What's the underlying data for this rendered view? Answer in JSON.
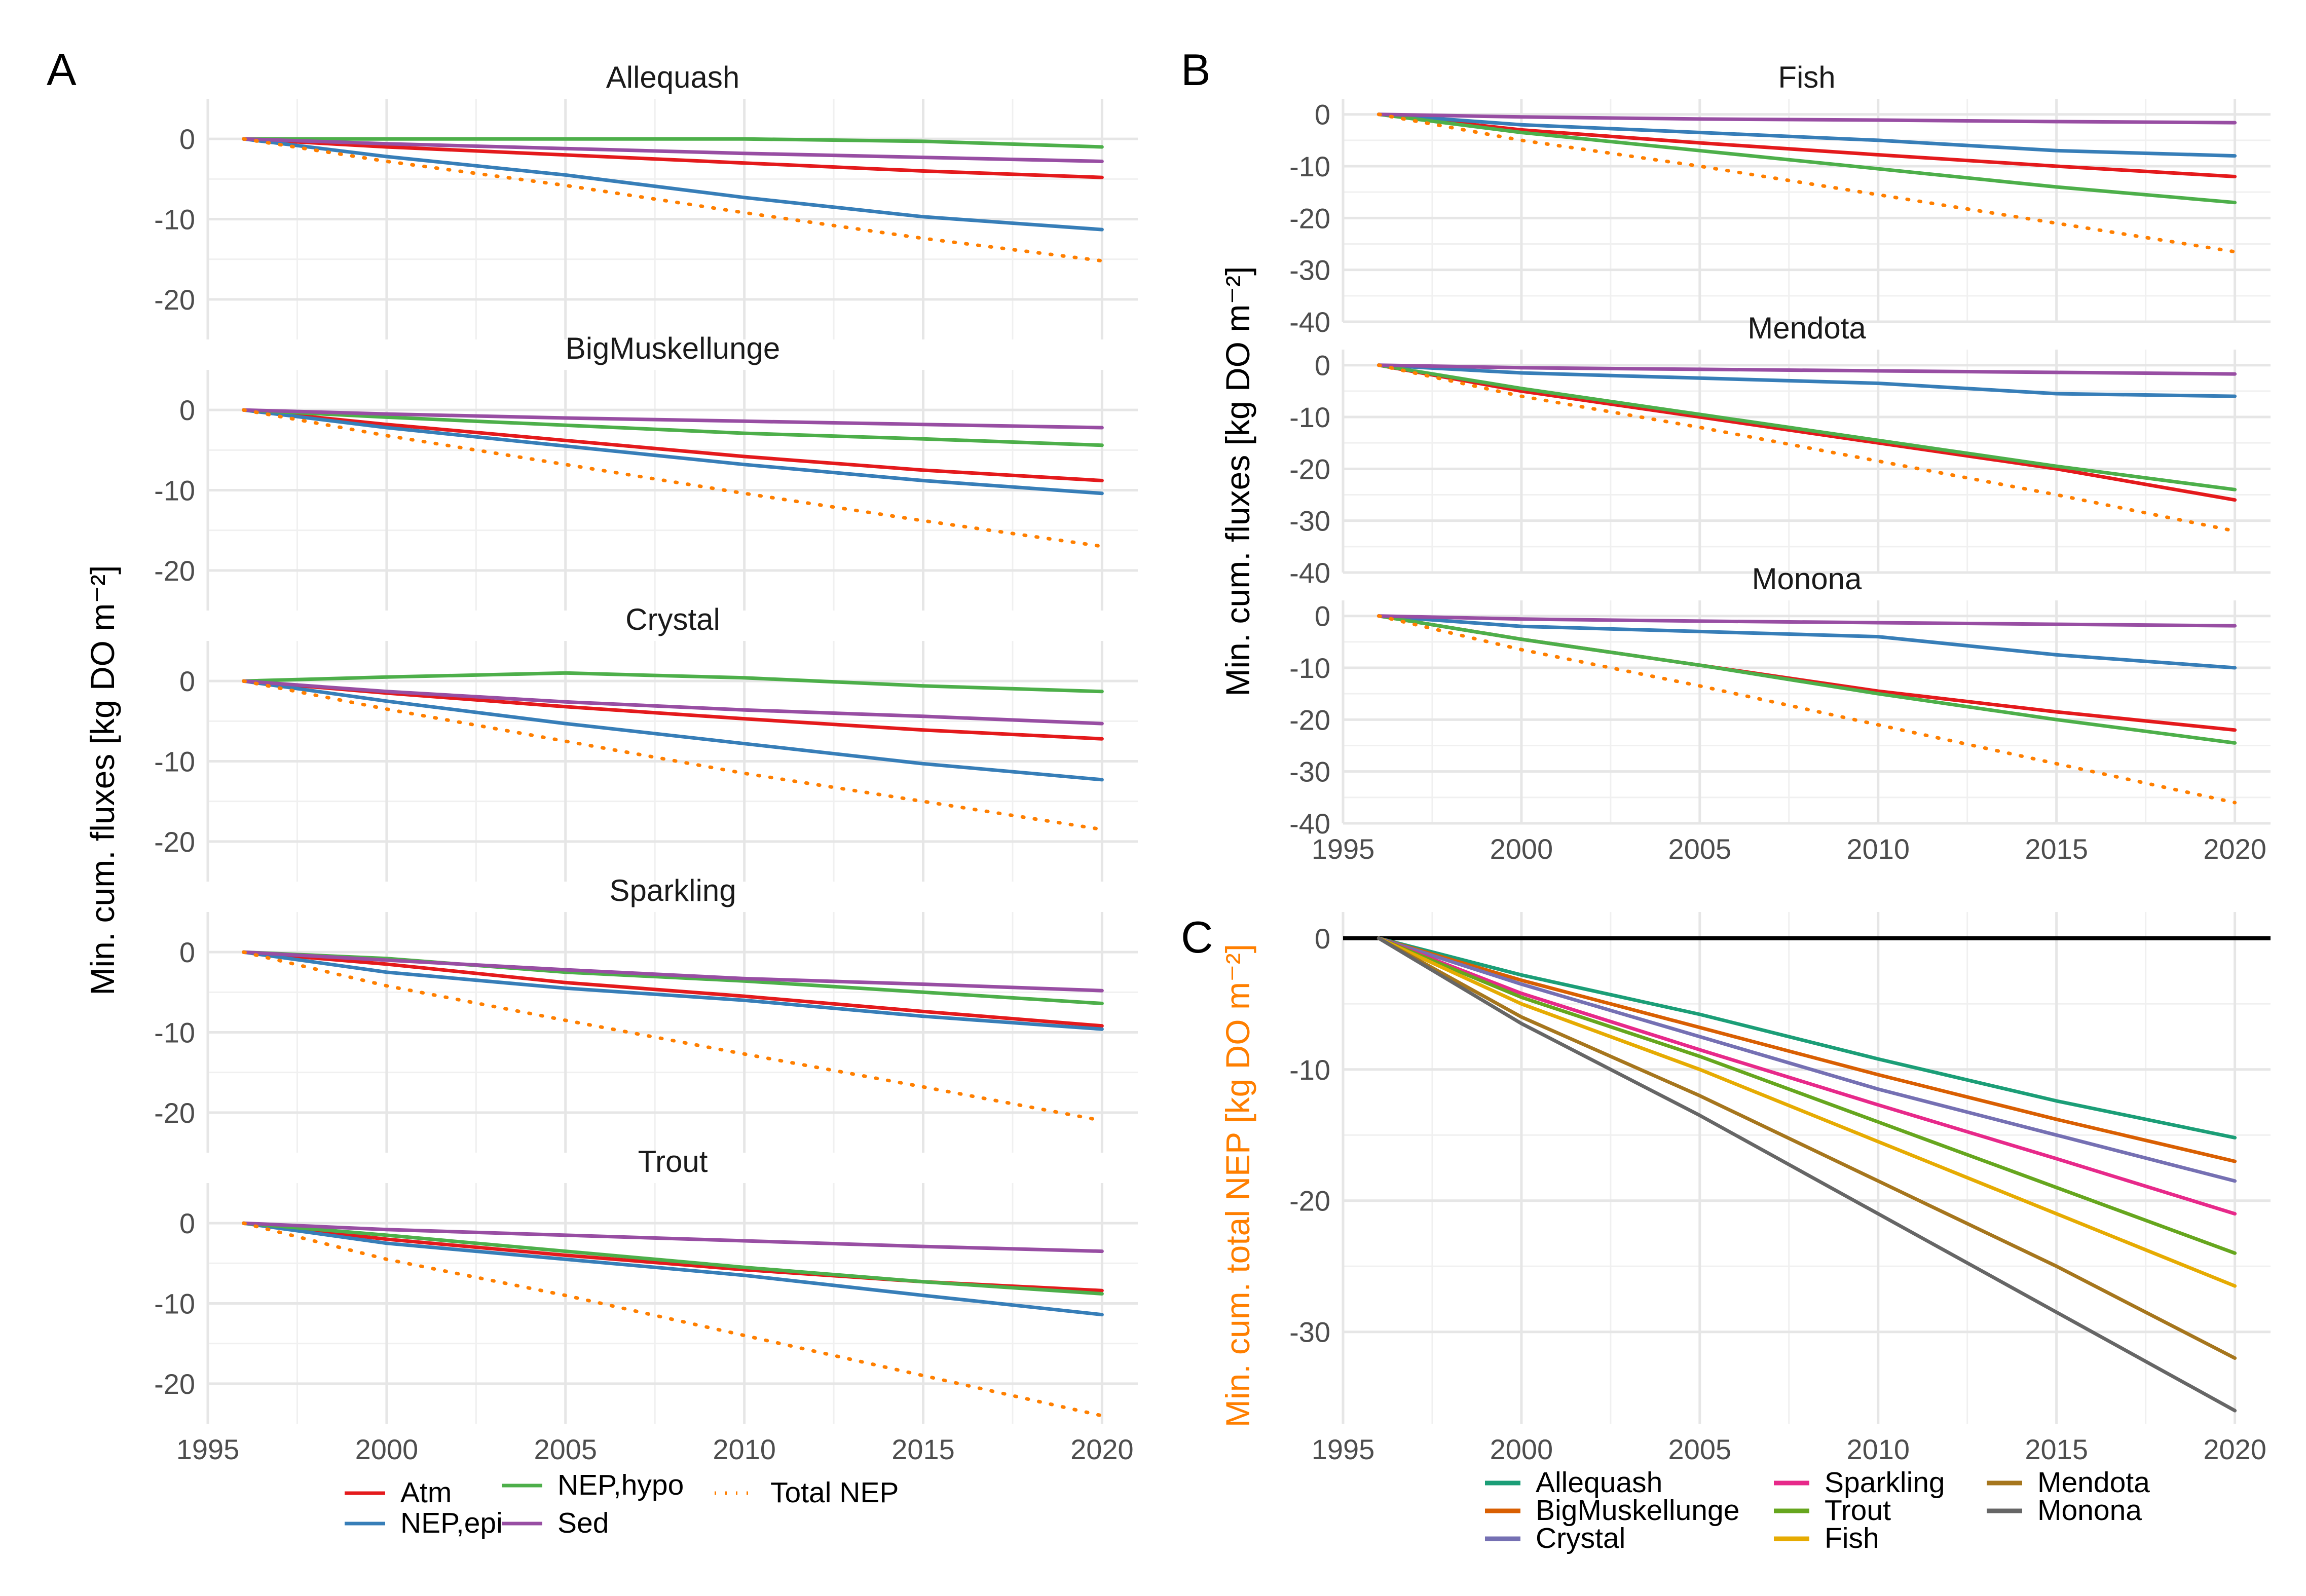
{
  "panel_labels": [
    "A",
    "B",
    "C"
  ],
  "colors": {
    "Atm": "#e41a1c",
    "NEP,epi": "#377eb8",
    "NEP,hypo": "#4daf4a",
    "Sed": "#984ea3",
    "Total NEP": "#ff7f00",
    "Allequash": "#1b9e77",
    "BigMuskellunge": "#d95f02",
    "Crystal": "#7570b3",
    "Sparkling": "#e7298a",
    "Trout": "#66a61e",
    "Fish": "#e6ab02",
    "Mendota": "#a6761d",
    "Monona": "#666666",
    "zero_line": "#000000",
    "panel_c_ylabel": "#ff7f00"
  },
  "chart_data": [
    {
      "panel": "A",
      "type": "line",
      "ylabel": "Min. cum. fluxes [kg DO m⁻²]",
      "x_ticks": [
        1995,
        2000,
        2005,
        2010,
        2015,
        2020
      ],
      "y_ticks": [
        0,
        -10,
        -20
      ],
      "xlim": [
        1995,
        2021
      ],
      "ylim": [
        -25,
        5
      ],
      "x": [
        1996,
        2000,
        2005,
        2010,
        2015,
        2020
      ],
      "facets": [
        {
          "name": "Allequash",
          "series": [
            {
              "name": "Atm",
              "values": [
                0,
                -1.0,
                -2.0,
                -3.0,
                -4.0,
                -4.8
              ]
            },
            {
              "name": "NEP,epi",
              "values": [
                0,
                -2.2,
                -4.5,
                -7.3,
                -9.7,
                -11.3
              ]
            },
            {
              "name": "NEP,hypo",
              "values": [
                0,
                0,
                0,
                0,
                -0.3,
                -1.0
              ]
            },
            {
              "name": "Sed",
              "values": [
                0,
                -0.6,
                -1.2,
                -1.8,
                -2.3,
                -2.8
              ]
            },
            {
              "name": "Total NEP",
              "values": [
                0,
                -2.8,
                -5.8,
                -9.2,
                -12.4,
                -15.2
              ]
            }
          ]
        },
        {
          "name": "BigMuskellunge",
          "series": [
            {
              "name": "Atm",
              "values": [
                0,
                -1.8,
                -3.8,
                -5.8,
                -7.5,
                -8.8
              ]
            },
            {
              "name": "NEP,epi",
              "values": [
                0,
                -2.2,
                -4.5,
                -6.8,
                -8.8,
                -10.4
              ]
            },
            {
              "name": "NEP,hypo",
              "values": [
                0,
                -0.9,
                -1.9,
                -2.9,
                -3.6,
                -4.4
              ]
            },
            {
              "name": "Sed",
              "values": [
                0,
                -0.5,
                -1.0,
                -1.4,
                -1.8,
                -2.2
              ]
            },
            {
              "name": "Total NEP",
              "values": [
                0,
                -3.2,
                -6.8,
                -10.4,
                -13.8,
                -17.0
              ]
            }
          ]
        },
        {
          "name": "Crystal",
          "series": [
            {
              "name": "Atm",
              "values": [
                0,
                -1.5,
                -3.2,
                -4.7,
                -6.1,
                -7.2
              ]
            },
            {
              "name": "NEP,epi",
              "values": [
                0,
                -2.5,
                -5.3,
                -7.8,
                -10.3,
                -12.3
              ]
            },
            {
              "name": "NEP,hypo",
              "values": [
                0,
                0.5,
                1.0,
                0.4,
                -0.6,
                -1.3
              ]
            },
            {
              "name": "Sed",
              "values": [
                0,
                -1.3,
                -2.6,
                -3.6,
                -4.4,
                -5.3
              ]
            },
            {
              "name": "Total NEP",
              "values": [
                0,
                -3.5,
                -7.5,
                -11.5,
                -15.0,
                -18.5
              ]
            }
          ]
        },
        {
          "name": "Sparkling",
          "series": [
            {
              "name": "Atm",
              "values": [
                0,
                -1.5,
                -3.8,
                -5.5,
                -7.4,
                -9.2
              ]
            },
            {
              "name": "NEP,epi",
              "values": [
                0,
                -2.5,
                -4.5,
                -6.0,
                -8.0,
                -9.6
              ]
            },
            {
              "name": "NEP,hypo",
              "values": [
                0,
                -0.8,
                -2.5,
                -3.6,
                -5.0,
                -6.4
              ]
            },
            {
              "name": "Sed",
              "values": [
                0,
                -1.0,
                -2.2,
                -3.3,
                -4.0,
                -4.8
              ]
            },
            {
              "name": "Total NEP",
              "values": [
                0,
                -4.2,
                -8.5,
                -12.7,
                -16.8,
                -21.0
              ]
            }
          ]
        },
        {
          "name": "Trout",
          "series": [
            {
              "name": "Atm",
              "values": [
                0,
                -2.0,
                -4.0,
                -5.8,
                -7.3,
                -8.4
              ]
            },
            {
              "name": "NEP,epi",
              "values": [
                0,
                -2.5,
                -4.5,
                -6.5,
                -9.0,
                -11.4
              ]
            },
            {
              "name": "NEP,hypo",
              "values": [
                0,
                -1.5,
                -3.5,
                -5.5,
                -7.3,
                -8.8
              ]
            },
            {
              "name": "Sed",
              "values": [
                0,
                -0.8,
                -1.5,
                -2.2,
                -2.9,
                -3.5
              ]
            },
            {
              "name": "Total NEP",
              "values": [
                0,
                -4.5,
                -9.0,
                -14.0,
                -19.0,
                -24.0
              ]
            }
          ]
        }
      ],
      "legend": {
        "position": "bottom",
        "entries": [
          "Atm",
          "NEP,epi",
          "NEP,hypo",
          "Sed",
          "Total NEP"
        ]
      }
    },
    {
      "panel": "B",
      "type": "line",
      "ylabel": "Min. cum. fluxes [kg DO m⁻²]",
      "x_ticks": [
        1995,
        2000,
        2005,
        2010,
        2015,
        2020
      ],
      "y_ticks": [
        0,
        -10,
        -20,
        -30,
        -40
      ],
      "xlim": [
        1995,
        2021
      ],
      "ylim": [
        -40,
        3
      ],
      "x": [
        1996,
        2000,
        2005,
        2010,
        2015,
        2020
      ],
      "facets": [
        {
          "name": "Fish",
          "series": [
            {
              "name": "Atm",
              "values": [
                0,
                -3.0,
                -5.5,
                -7.8,
                -10.0,
                -12.0
              ]
            },
            {
              "name": "NEP,epi",
              "values": [
                0,
                -2.0,
                -3.5,
                -5.0,
                -7.0,
                -8.0
              ]
            },
            {
              "name": "NEP,hypo",
              "values": [
                0,
                -3.5,
                -7.0,
                -10.5,
                -14.0,
                -17.0
              ]
            },
            {
              "name": "Sed",
              "values": [
                0,
                -0.5,
                -0.9,
                -1.1,
                -1.4,
                -1.6
              ]
            },
            {
              "name": "Total NEP",
              "values": [
                0,
                -5.0,
                -10.0,
                -15.5,
                -21.0,
                -26.5
              ]
            }
          ]
        },
        {
          "name": "Mendota",
          "series": [
            {
              "name": "Atm",
              "values": [
                0,
                -5.0,
                -10.0,
                -15.0,
                -20.0,
                -26.0
              ]
            },
            {
              "name": "NEP,epi",
              "values": [
                0,
                -1.5,
                -2.5,
                -3.5,
                -5.5,
                -6.0
              ]
            },
            {
              "name": "NEP,hypo",
              "values": [
                0,
                -4.5,
                -9.5,
                -14.5,
                -19.5,
                -24.0
              ]
            },
            {
              "name": "Sed",
              "values": [
                0,
                -0.5,
                -0.8,
                -1.1,
                -1.4,
                -1.7
              ]
            },
            {
              "name": "Total NEP",
              "values": [
                0,
                -6.0,
                -12.0,
                -18.5,
                -25.0,
                -32.0
              ]
            }
          ]
        },
        {
          "name": "Monona",
          "series": [
            {
              "name": "Atm",
              "values": [
                0,
                -4.5,
                -9.5,
                -14.5,
                -18.5,
                -22.0
              ]
            },
            {
              "name": "NEP,epi",
              "values": [
                0,
                -2.0,
                -3.0,
                -4.0,
                -7.5,
                -10.0
              ]
            },
            {
              "name": "NEP,hypo",
              "values": [
                0,
                -4.5,
                -9.5,
                -15.0,
                -20.0,
                -24.5
              ]
            },
            {
              "name": "Sed",
              "values": [
                0,
                -0.6,
                -1.0,
                -1.3,
                -1.6,
                -1.9
              ]
            },
            {
              "name": "Total NEP",
              "values": [
                0,
                -6.5,
                -13.5,
                -21.0,
                -28.5,
                -36.0
              ]
            }
          ]
        }
      ]
    },
    {
      "panel": "C",
      "type": "line",
      "ylabel": "Min. cum. total NEP [kg DO m⁻²]",
      "x_ticks": [
        1995,
        2000,
        2005,
        2010,
        2015,
        2020
      ],
      "y_ticks": [
        0,
        -10,
        -20,
        -30
      ],
      "xlim": [
        1995,
        2021
      ],
      "ylim": [
        -37,
        2
      ],
      "reference_line": 0,
      "x": [
        1996,
        2000,
        2005,
        2010,
        2015,
        2020
      ],
      "series": [
        {
          "name": "Allequash",
          "values": [
            0,
            -2.8,
            -5.8,
            -9.2,
            -12.4,
            -15.2
          ]
        },
        {
          "name": "BigMuskellunge",
          "values": [
            0,
            -3.2,
            -6.8,
            -10.4,
            -13.8,
            -17.0
          ]
        },
        {
          "name": "Crystal",
          "values": [
            0,
            -3.5,
            -7.5,
            -11.5,
            -15.0,
            -18.5
          ]
        },
        {
          "name": "Sparkling",
          "values": [
            0,
            -4.2,
            -8.5,
            -12.7,
            -16.8,
            -21.0
          ]
        },
        {
          "name": "Trout",
          "values": [
            0,
            -4.5,
            -9.0,
            -14.0,
            -19.0,
            -24.0
          ]
        },
        {
          "name": "Fish",
          "values": [
            0,
            -5.0,
            -10.0,
            -15.5,
            -21.0,
            -26.5
          ]
        },
        {
          "name": "Mendota",
          "values": [
            0,
            -6.0,
            -12.0,
            -18.5,
            -25.0,
            -32.0
          ]
        },
        {
          "name": "Monona",
          "values": [
            0,
            -6.5,
            -13.5,
            -21.0,
            -28.5,
            -36.0
          ]
        }
      ],
      "legend": {
        "position": "bottom",
        "entries": [
          "Allequash",
          "BigMuskellunge",
          "Crystal",
          "Sparkling",
          "Trout",
          "Fish",
          "Mendota",
          "Monona"
        ]
      }
    }
  ]
}
